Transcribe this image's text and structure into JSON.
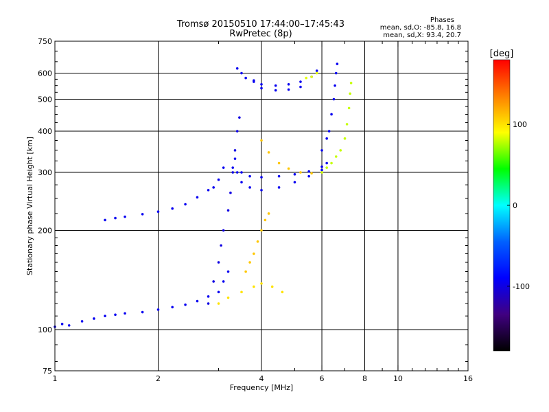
{
  "header": {
    "title_line1": "Tromsø 20150510 17:44:00–17:45:43",
    "title_line2": "RwPretec (8p)",
    "stats_title": "Phases",
    "stats_o": "mean, sd,O:  -85.8, 16.8",
    "stats_x": "mean, sd,X:  93.4, 20.7"
  },
  "chart_data": {
    "type": "scatter",
    "xlabel": "Frequency [MHz]",
    "ylabel": "Stationary phase Virtual Height [km]",
    "x_scale": "log",
    "y_scale": "log",
    "xlim": [
      1,
      16
    ],
    "ylim": [
      75,
      750
    ],
    "x_ticks": [
      1,
      2,
      4,
      6,
      8,
      10,
      16
    ],
    "y_ticks": [
      75,
      100,
      200,
      300,
      400,
      500,
      600,
      750
    ],
    "x_grid": [
      2,
      4,
      6,
      8,
      10
    ],
    "y_grid": [
      100,
      200,
      300,
      400,
      500,
      600
    ],
    "grid": true,
    "colorbar": {
      "label": "[deg]",
      "range": [
        -180,
        180
      ],
      "ticks": [
        100,
        0,
        -100
      ],
      "colors": [
        "#ff0000",
        "#ff8000",
        "#ffff00",
        "#00ff00",
        "#00ffff",
        "#0060ff",
        "#0000ff",
        "#400080",
        "#000000"
      ]
    },
    "series": [
      {
        "phase": -95,
        "points": [
          [
            1.0,
            102
          ],
          [
            1.05,
            104
          ],
          [
            1.1,
            103
          ],
          [
            1.2,
            106
          ],
          [
            1.3,
            108
          ],
          [
            1.4,
            110
          ],
          [
            1.5,
            111
          ],
          [
            1.6,
            112
          ],
          [
            1.8,
            113
          ],
          [
            2.0,
            115
          ],
          [
            2.2,
            117
          ],
          [
            2.4,
            119
          ],
          [
            2.6,
            122
          ],
          [
            2.8,
            126
          ],
          [
            3.0,
            130
          ],
          [
            3.1,
            140
          ],
          [
            3.2,
            150
          ]
        ]
      },
      {
        "phase": -95,
        "points": [
          [
            1.4,
            215
          ],
          [
            1.5,
            218
          ],
          [
            1.6,
            220
          ],
          [
            1.8,
            224
          ],
          [
            2.0,
            228
          ],
          [
            2.2,
            233
          ],
          [
            2.4,
            240
          ],
          [
            2.6,
            252
          ],
          [
            2.8,
            265
          ],
          [
            2.9,
            270
          ],
          [
            3.0,
            285
          ],
          [
            3.1,
            310
          ]
        ]
      },
      {
        "phase": -100,
        "points": [
          [
            2.8,
            120
          ],
          [
            2.9,
            140
          ],
          [
            3.0,
            160
          ],
          [
            3.05,
            180
          ],
          [
            3.1,
            200
          ],
          [
            3.2,
            230
          ],
          [
            3.25,
            260
          ],
          [
            3.3,
            300
          ],
          [
            3.35,
            350
          ],
          [
            3.4,
            400
          ],
          [
            3.45,
            440
          ]
        ]
      },
      {
        "phase": -95,
        "points": [
          [
            3.35,
            330
          ],
          [
            3.4,
            300
          ],
          [
            3.5,
            280
          ],
          [
            3.7,
            270
          ],
          [
            4.0,
            265
          ],
          [
            4.5,
            270
          ],
          [
            5.0,
            280
          ],
          [
            5.5,
            292
          ],
          [
            6.0,
            305
          ],
          [
            6.2,
            320
          ]
        ]
      },
      {
        "phase": -95,
        "points": [
          [
            3.3,
            310
          ],
          [
            3.5,
            300
          ],
          [
            3.7,
            292
          ],
          [
            4.0,
            290
          ],
          [
            4.5,
            292
          ],
          [
            5.0,
            296
          ],
          [
            5.5,
            302
          ],
          [
            6.0,
            312
          ]
        ]
      },
      {
        "phase": 110,
        "points": [
          [
            3.6,
            150
          ],
          [
            3.7,
            160
          ],
          [
            3.8,
            170
          ],
          [
            3.9,
            185
          ],
          [
            4.0,
            200
          ],
          [
            4.1,
            215
          ],
          [
            4.2,
            225
          ]
        ]
      },
      {
        "phase": 100,
        "points": [
          [
            3.0,
            120
          ],
          [
            3.2,
            125
          ],
          [
            3.5,
            130
          ],
          [
            3.8,
            135
          ],
          [
            4.0,
            138
          ],
          [
            4.3,
            135
          ],
          [
            4.6,
            130
          ]
        ]
      },
      {
        "phase": 110,
        "points": [
          [
            4.0,
            375
          ],
          [
            4.2,
            345
          ],
          [
            4.5,
            320
          ],
          [
            4.8,
            308
          ],
          [
            5.2,
            300
          ],
          [
            5.6,
            298
          ],
          [
            6.0,
            300
          ]
        ]
      },
      {
        "phase": 80,
        "points": [
          [
            6.0,
            300
          ],
          [
            6.2,
            310
          ],
          [
            6.4,
            320
          ],
          [
            6.6,
            335
          ],
          [
            6.8,
            350
          ],
          [
            7.0,
            380
          ],
          [
            7.1,
            420
          ],
          [
            7.2,
            470
          ],
          [
            7.25,
            520
          ],
          [
            7.3,
            560
          ]
        ]
      },
      {
        "phase": -95,
        "points": [
          [
            6.0,
            350
          ],
          [
            6.2,
            380
          ],
          [
            6.3,
            400
          ],
          [
            6.4,
            450
          ],
          [
            6.5,
            500
          ],
          [
            6.55,
            550
          ],
          [
            6.6,
            600
          ],
          [
            6.65,
            640
          ]
        ]
      },
      {
        "phase": -95,
        "points": [
          [
            3.4,
            620
          ],
          [
            3.6,
            580
          ],
          [
            3.8,
            565
          ],
          [
            4.0,
            555
          ],
          [
            4.4,
            550
          ],
          [
            4.8,
            555
          ],
          [
            5.2,
            565
          ],
          [
            5.6,
            585
          ],
          [
            5.8,
            610
          ]
        ]
      },
      {
        "phase": -95,
        "points": [
          [
            3.5,
            600
          ],
          [
            3.8,
            570
          ],
          [
            4.0,
            540
          ],
          [
            4.4,
            532
          ],
          [
            4.8,
            535
          ],
          [
            5.2,
            545
          ]
        ]
      },
      {
        "phase": 85,
        "points": [
          [
            5.4,
            580
          ],
          [
            5.6,
            585
          ],
          [
            5.8,
            600
          ]
        ]
      }
    ]
  }
}
